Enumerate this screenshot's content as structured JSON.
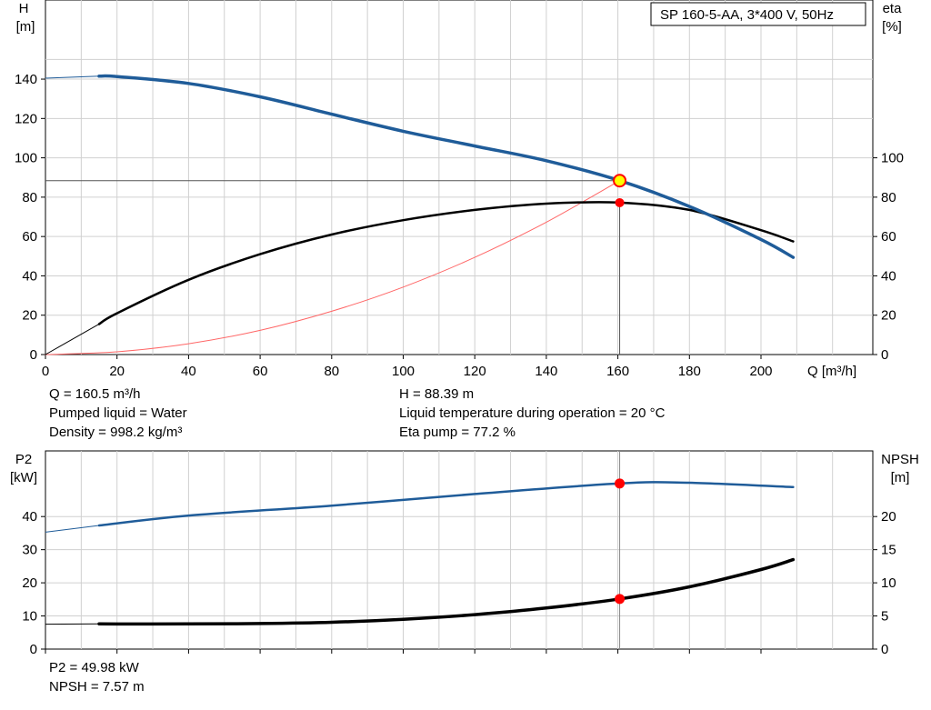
{
  "pump_label": "SP 160-5-AA, 3*400 V, 50Hz",
  "colors": {
    "head_curve": "#1f5c99",
    "eta_curve": "#000000",
    "system_curve": "#ff6666",
    "p2_curve": "#1f5c99",
    "npsh_curve": "#000000",
    "marker": "#ff0000",
    "duty_marker_fill": "#ffff00",
    "grid": "#d0d0d0"
  },
  "top_panel": {
    "left_axis_unit": [
      "H",
      "[m]"
    ],
    "right_axis_unit": [
      "eta",
      "[%]"
    ],
    "x_axis_unit": "Q [m³/h]"
  },
  "bottom_panel": {
    "left_axis_unit": [
      "P2",
      "[kW]"
    ],
    "right_axis_unit": [
      "NPSH",
      "[m]"
    ]
  },
  "duty_info": {
    "q": "Q = 160.5 m³/h",
    "h": "H = 88.39 m",
    "liquid": "Pumped liquid = Water",
    "temperature": "Liquid temperature during operation = 20 °C",
    "density": "Density = 998.2 kg/m³",
    "eta_pump": "Eta pump = 77.2 %",
    "p2": "P2 = 49.98 kW",
    "npsh": "NPSH = 7.57 m"
  },
  "chart_data": [
    {
      "type": "line",
      "panel": "top",
      "xlabel": "Q [m³/h]",
      "ylabel": "H [m]",
      "y2label": "eta [%]",
      "xlim": [
        0,
        230
      ],
      "x_ticks": [
        0,
        20,
        40,
        60,
        80,
        100,
        120,
        140,
        160,
        180,
        200
      ],
      "ylim": [
        0,
        160
      ],
      "y_ticks": [
        0,
        20,
        40,
        60,
        80,
        100,
        120,
        140
      ],
      "y2lim": [
        0,
        160
      ],
      "y2_ticks": [
        0,
        20,
        40,
        60,
        80,
        100
      ],
      "grid": true,
      "series": [
        {
          "name": "H",
          "axis": "left",
          "x": [
            15,
            20,
            40,
            60,
            80,
            100,
            120,
            140,
            160.5,
            180,
            200,
            209
          ],
          "y": [
            141.5,
            141.3,
            137.8,
            131,
            122.2,
            113.5,
            106,
            98.5,
            88.4,
            75.3,
            58.5,
            49.4
          ],
          "extension": {
            "x": [
              0,
              15
            ],
            "y": [
              140.5,
              141.5
            ]
          }
        },
        {
          "name": "eta",
          "axis": "right",
          "x": [
            15,
            20,
            40,
            60,
            80,
            100,
            120,
            140,
            160,
            180,
            200,
            209
          ],
          "y": [
            15.5,
            21,
            38,
            51,
            61,
            68.3,
            73.5,
            76.7,
            77.3,
            73.5,
            63.2,
            57.5
          ],
          "extension": {
            "x": [
              0,
              15
            ],
            "y": [
              0,
              15.5
            ]
          }
        },
        {
          "name": "system curve",
          "axis": "left",
          "x": [
            0,
            20,
            40,
            60,
            80,
            100,
            120,
            140,
            160.5
          ],
          "y": [
            0,
            1.4,
            5.5,
            12.3,
            22.0,
            34.3,
            49.4,
            67.3,
            88.4
          ]
        }
      ],
      "duty_point": {
        "q": 160.5,
        "h": 88.39,
        "eta": 77.2
      }
    },
    {
      "type": "line",
      "panel": "bottom",
      "xlim": [
        0,
        230
      ],
      "ylabel": "P2 [kW]",
      "y2label": "NPSH [m]",
      "ylim": [
        0,
        50
      ],
      "y_ticks": [
        0,
        10,
        20,
        30,
        40
      ],
      "y2lim": [
        0,
        25
      ],
      "y2_ticks": [
        0,
        5,
        10,
        15,
        20
      ],
      "grid": true,
      "series": [
        {
          "name": "P2",
          "axis": "left",
          "x": [
            15,
            40,
            80,
            120,
            160.5,
            180,
            209
          ],
          "y": [
            37.3,
            40.3,
            43.3,
            46.8,
            50.0,
            50.2,
            48.9
          ],
          "extension": {
            "x": [
              0,
              15
            ],
            "y": [
              35.3,
              37.3
            ]
          }
        },
        {
          "name": "NPSH",
          "axis": "right",
          "x": [
            15,
            40,
            60,
            80,
            100,
            120,
            140,
            160.5,
            180,
            200,
            209
          ],
          "y": [
            3.8,
            3.8,
            3.85,
            4.05,
            4.5,
            5.2,
            6.2,
            7.57,
            9.4,
            12,
            13.5
          ],
          "extension": {
            "x": [
              0,
              15
            ],
            "y": [
              3.75,
              3.8
            ]
          }
        }
      ],
      "duty_point": {
        "q": 160.5,
        "p2": 49.98,
        "npsh": 7.57
      }
    }
  ]
}
